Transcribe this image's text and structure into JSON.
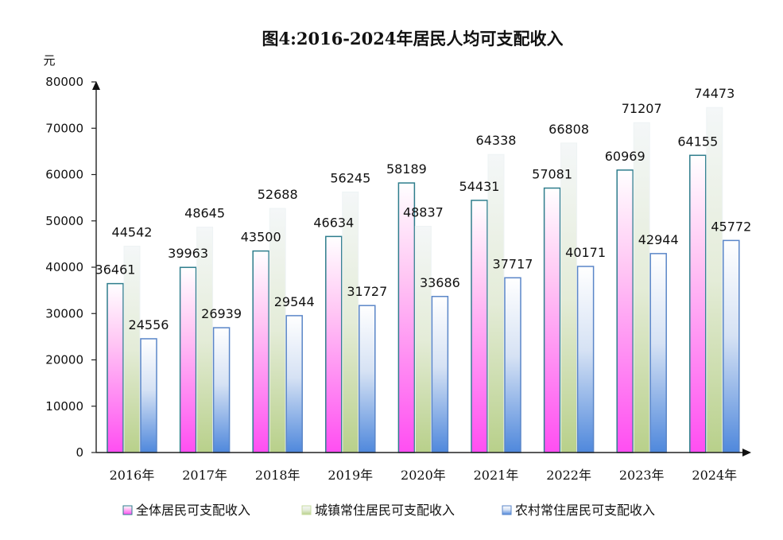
{
  "chart_data": {
    "type": "bar",
    "title": "图4:2016-2024年居民人均可支配收入",
    "ylabel": "元",
    "xlabel": "",
    "ylim": [
      0,
      80000
    ],
    "yticks": [
      0,
      10000,
      20000,
      30000,
      40000,
      50000,
      60000,
      70000,
      80000
    ],
    "categories": [
      "2016年",
      "2017年",
      "2018年",
      "2019年",
      "2020年",
      "2021年",
      "2022年",
      "2023年",
      "2024年"
    ],
    "series": [
      {
        "name": "全体居民可支配收入",
        "color": "#ff66ff",
        "edge": "#2e7d8c",
        "values": [
          36461,
          39963,
          43500,
          46634,
          58189,
          54431,
          57081,
          60969,
          64155
        ]
      },
      {
        "name": "城镇常住居民可支配收入",
        "color": "#c9dca0",
        "edge": "#eef3f4",
        "values": [
          44542,
          48645,
          52688,
          56245,
          48837,
          64338,
          66808,
          71207,
          74473
        ]
      },
      {
        "name": "农村常住居民可支配收入",
        "color": "#6fa0e0",
        "edge": "#5a86c8",
        "values": [
          24556,
          26939,
          29544,
          31727,
          33686,
          37717,
          40171,
          42944,
          45772
        ]
      }
    ],
    "grid": false,
    "legend": "bottom"
  }
}
